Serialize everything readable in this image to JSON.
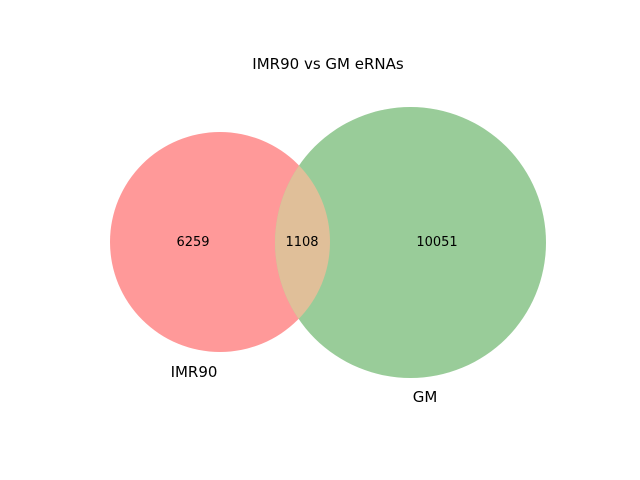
{
  "chart_data": {
    "type": "venn",
    "title": "IMR90 vs GM eRNAs",
    "sets": [
      {
        "name": "IMR90",
        "color": "#ff9999"
      },
      {
        "name": "GM",
        "color": "#99cc99"
      }
    ],
    "intersection_color": "#e0bf99",
    "counts": {
      "only_a": "6259",
      "both": "1108",
      "only_b": "10051"
    }
  }
}
